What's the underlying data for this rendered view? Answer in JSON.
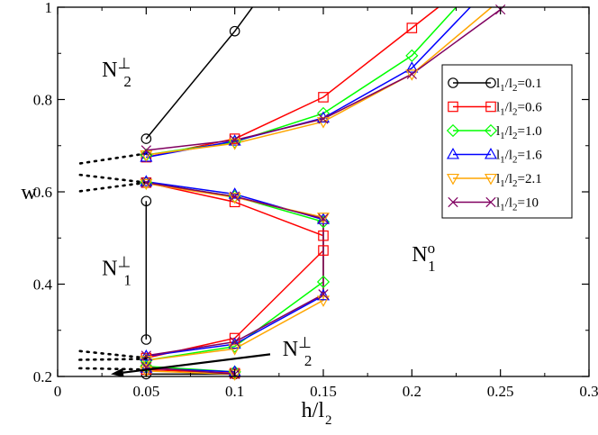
{
  "chart_data": {
    "type": "line",
    "title": "",
    "xlabel": {
      "main": "h/l",
      "sub": "2"
    },
    "ylabel": "w",
    "xlim": [
      0,
      0.3
    ],
    "ylim": [
      0.2,
      1.0
    ],
    "xticks": [
      0,
      0.05,
      0.1,
      0.15,
      0.2,
      0.25,
      0.3
    ],
    "xtick_labels": [
      "0",
      "0.05",
      "0.1",
      "0.15",
      "0.2",
      "0.25",
      "0.3"
    ],
    "yticks": [
      0.2,
      0.4,
      0.6,
      0.8,
      1.0
    ],
    "ytick_labels": [
      "0.2",
      "0.4",
      "0.6",
      "0.8",
      "1"
    ],
    "grid": false,
    "legend_position": "top-right",
    "series": [
      {
        "name": "l1/l2=0.1",
        "ratio": "0.1",
        "color": "#000000",
        "marker": "circle",
        "segments": [
          [
            [
              0.05,
              0.715
            ],
            [
              0.1,
              0.948
            ],
            [
              0.11,
              1.0
            ]
          ],
          [
            [
              0.05,
              0.58
            ],
            [
              0.05,
              0.28
            ]
          ],
          [
            [
              0.05,
              0.205
            ],
            [
              0.1,
              0.205
            ]
          ]
        ]
      },
      {
        "name": "l1/l2=0.6",
        "ratio": "0.6",
        "color": "#ff0000",
        "marker": "square",
        "segments": [
          [
            [
              0.05,
              0.675
            ],
            [
              0.1,
              0.715
            ],
            [
              0.15,
              0.805
            ],
            [
              0.2,
              0.955
            ],
            [
              0.215,
              1.0
            ]
          ],
          [
            [
              0.05,
              0.62
            ],
            [
              0.1,
              0.578
            ],
            [
              0.15,
              0.505
            ],
            [
              0.15,
              0.473
            ],
            [
              0.1,
              0.283
            ],
            [
              0.05,
              0.24
            ]
          ],
          [
            [
              0.05,
              0.215
            ],
            [
              0.1,
              0.207
            ]
          ]
        ]
      },
      {
        "name": "l1/l2=1.0",
        "ratio": "1.0",
        "color": "#00ff00",
        "marker": "diamond",
        "segments": [
          [
            [
              0.05,
              0.68
            ],
            [
              0.1,
              0.708
            ],
            [
              0.15,
              0.77
            ],
            [
              0.2,
              0.895
            ],
            [
              0.225,
              1.0
            ]
          ],
          [
            [
              0.05,
              0.62
            ],
            [
              0.1,
              0.59
            ],
            [
              0.15,
              0.535
            ],
            [
              0.15,
              0.405
            ],
            [
              0.1,
              0.265
            ],
            [
              0.05,
              0.235
            ]
          ],
          [
            [
              0.05,
              0.222
            ],
            [
              0.1,
              0.21
            ]
          ]
        ]
      },
      {
        "name": "l1/l2=1.6",
        "ratio": "1.6",
        "color": "#0000ff",
        "marker": "triangle-up",
        "segments": [
          [
            [
              0.05,
              0.675
            ],
            [
              0.1,
              0.71
            ],
            [
              0.15,
              0.76
            ],
            [
              0.2,
              0.868
            ],
            [
              0.233,
              1.0
            ]
          ],
          [
            [
              0.05,
              0.622
            ],
            [
              0.1,
              0.595
            ],
            [
              0.15,
              0.54
            ],
            [
              0.15,
              0.375
            ],
            [
              0.1,
              0.27
            ],
            [
              0.05,
              0.244
            ]
          ],
          [
            [
              0.05,
              0.218
            ],
            [
              0.1,
              0.21
            ]
          ]
        ]
      },
      {
        "name": "l1/l2=2.1",
        "ratio": "2.1",
        "color": "#ffa500",
        "marker": "triangle-down",
        "segments": [
          [
            [
              0.05,
              0.68
            ],
            [
              0.1,
              0.705
            ],
            [
              0.15,
              0.752
            ],
            [
              0.2,
              0.855
            ],
            [
              0.245,
              1.0
            ]
          ],
          [
            [
              0.05,
              0.618
            ],
            [
              0.1,
              0.588
            ],
            [
              0.15,
              0.545
            ],
            [
              0.15,
              0.365
            ],
            [
              0.1,
              0.26
            ],
            [
              0.05,
              0.235
            ]
          ],
          [
            [
              0.05,
              0.212
            ],
            [
              0.1,
              0.205
            ]
          ]
        ]
      },
      {
        "name": "l1/l2=10",
        "ratio": "10",
        "color": "#800060",
        "marker": "x",
        "segments": [
          [
            [
              0.05,
              0.69
            ],
            [
              0.1,
              0.712
            ],
            [
              0.15,
              0.758
            ],
            [
              0.2,
              0.855
            ],
            [
              0.25,
              0.995
            ]
          ],
          [
            [
              0.05,
              0.62
            ],
            [
              0.1,
              0.59
            ],
            [
              0.15,
              0.542
            ],
            [
              0.15,
              0.378
            ],
            [
              0.1,
              0.275
            ],
            [
              0.05,
              0.245
            ]
          ],
          [
            [
              0.05,
              0.22
            ],
            [
              0.1,
              0.205
            ]
          ]
        ]
      }
    ],
    "dotted_extensions": [
      [
        [
          0.05,
          0.683
        ],
        [
          0.01,
          0.66
        ]
      ],
      [
        [
          0.05,
          0.62
        ],
        [
          0.01,
          0.638
        ]
      ],
      [
        [
          0.05,
          0.62
        ],
        [
          0.01,
          0.6
        ]
      ],
      [
        [
          0.05,
          0.24
        ],
        [
          0.01,
          0.256
        ]
      ],
      [
        [
          0.05,
          0.238
        ],
        [
          0.01,
          0.236
        ]
      ],
      [
        [
          0.05,
          0.215
        ],
        [
          0.01,
          0.218
        ]
      ]
    ],
    "annotations": [
      {
        "id": "n-perp-2-top",
        "main": "N",
        "sup": "⊥",
        "sub": "2",
        "x": 0.025,
        "y": 0.85
      },
      {
        "id": "n-perp-1",
        "main": "N",
        "sup": "⊥",
        "sub": "1",
        "x": 0.025,
        "y": 0.42
      },
      {
        "id": "n-o-1",
        "main": "N",
        "sup": "o",
        "sub": "1",
        "x": 0.2,
        "y": 0.45
      },
      {
        "id": "n-perp-2-bottom",
        "main": "N",
        "sup": "⊥",
        "sub": "2",
        "x": 0.127,
        "y": 0.245
      }
    ],
    "arrow": {
      "from": [
        0.12,
        0.248
      ],
      "to": [
        0.03,
        0.205
      ]
    }
  }
}
